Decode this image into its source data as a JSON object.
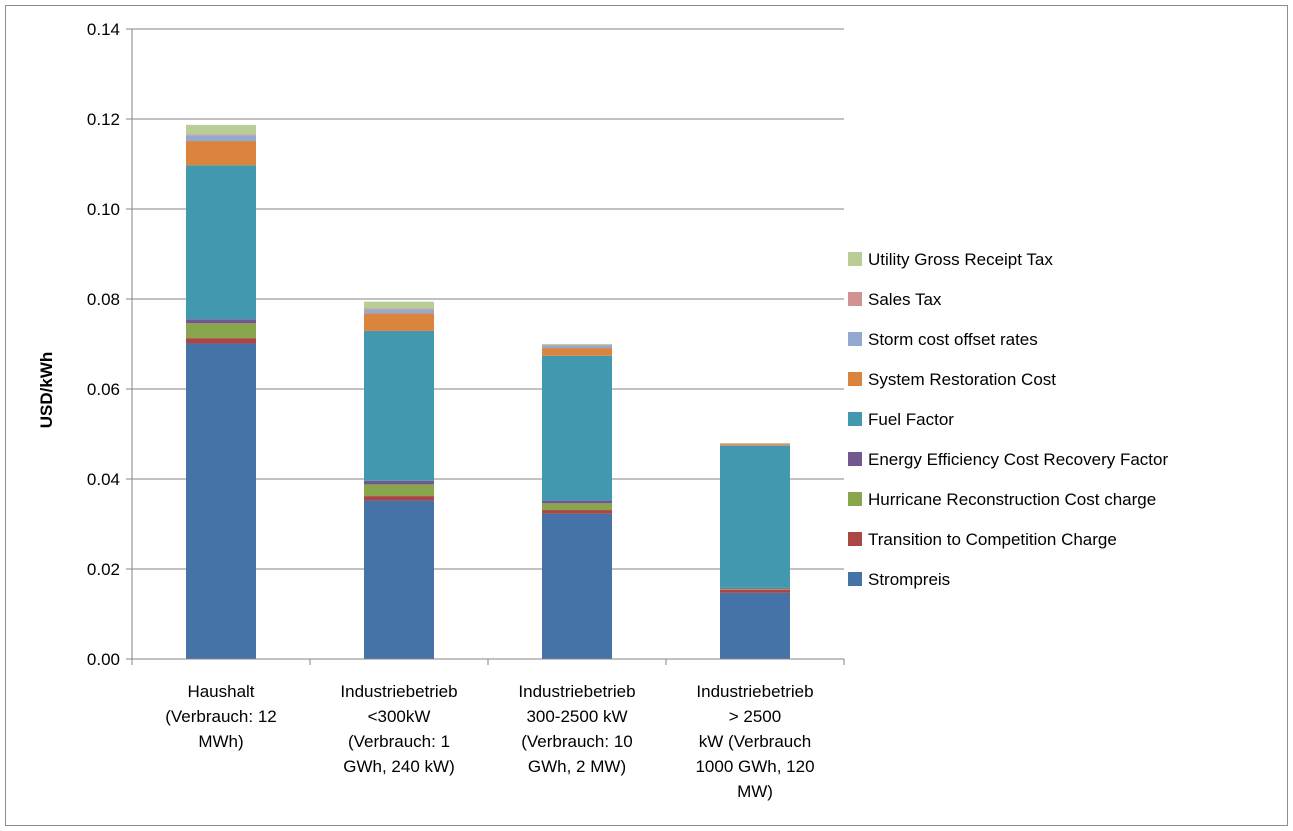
{
  "chart_data": {
    "type": "bar",
    "stacked": true,
    "title": "",
    "xlabel": "",
    "ylabel": "USD/kWh",
    "ylim": [
      0,
      0.14
    ],
    "yticks": [
      "0.00",
      "0.02",
      "0.04",
      "0.06",
      "0.08",
      "0.10",
      "0.12",
      "0.14"
    ],
    "grid": true,
    "legend_position": "right",
    "categories": [
      [
        "Haushalt",
        "(Verbrauch: 12",
        "MWh)"
      ],
      [
        "Industriebetrieb",
        "<300kW",
        "(Verbrauch: 1",
        "GWh, 240 kW)"
      ],
      [
        "Industriebetrieb",
        "300-2500 kW",
        "(Verbrauch: 10",
        "GWh, 2 MW)"
      ],
      [
        "Industriebetrieb",
        "> 2500",
        "kW (Verbrauch",
        "1000 GWh, 120",
        "MW)"
      ]
    ],
    "series": [
      {
        "name": "Strompreis",
        "color": "#4572a7",
        "values": [
          0.0701,
          0.0352,
          0.0323,
          0.0147
        ]
      },
      {
        "name": "Transition to Competition Charge",
        "color": "#aa4643",
        "values": [
          0.0012,
          0.001,
          0.0008,
          0.0007
        ]
      },
      {
        "name": "Hurricane Reconstruction Cost charge",
        "color": "#89a54e",
        "values": [
          0.0033,
          0.0026,
          0.0015,
          0.0002
        ]
      },
      {
        "name": "Energy Efficiency Cost Recovery Factor",
        "color": "#71588f",
        "values": [
          0.0009,
          0.0008,
          0.0006,
          0.0002
        ]
      },
      {
        "name": "Fuel Factor",
        "color": "#4198af",
        "values": [
          0.0342,
          0.0333,
          0.0322,
          0.0316
        ]
      },
      {
        "name": "System Restoration Cost",
        "color": "#db843d",
        "values": [
          0.0054,
          0.0039,
          0.0017,
          0.0003
        ]
      },
      {
        "name": "Storm cost offset rates",
        "color": "#93a9cf",
        "values": [
          0.0013,
          0.0009,
          0.0006,
          0.0001
        ]
      },
      {
        "name": "Sales Tax",
        "color": "#d19392",
        "values": [
          0.0002,
          0.0002,
          0.0001,
          0.0001
        ]
      },
      {
        "name": "Utility Gross Receipt Tax",
        "color": "#b9cd96",
        "values": [
          0.0021,
          0.0015,
          0.0002,
          0.0001
        ]
      }
    ]
  }
}
